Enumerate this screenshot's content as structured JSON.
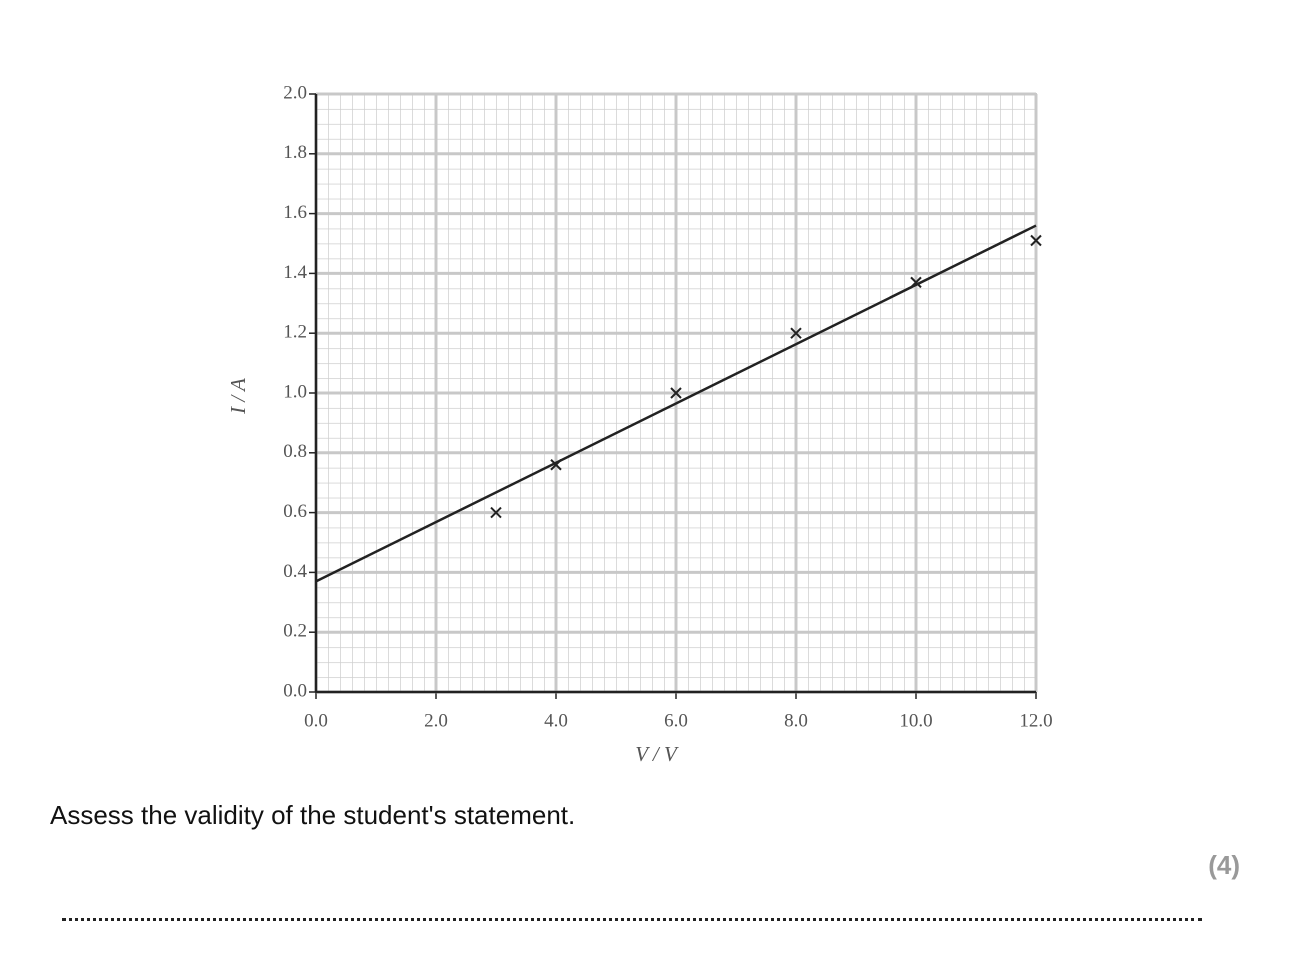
{
  "chart_data": {
    "type": "scatter",
    "xlabel": "V / V",
    "ylabel": "I / A",
    "x": [
      3,
      4,
      6,
      8,
      10,
      12
    ],
    "values": [
      0.6,
      0.76,
      1.0,
      1.2,
      1.37,
      1.51
    ],
    "fit_line": {
      "x": [
        0,
        12
      ],
      "values": [
        0.37,
        1.56
      ]
    },
    "xlim": [
      0,
      12
    ],
    "xticks": [
      {
        "value": 0,
        "label": "0.0"
      },
      {
        "value": 2,
        "label": "2.0"
      },
      {
        "value": 4,
        "label": "4.0"
      },
      {
        "value": 6,
        "label": "6.0"
      },
      {
        "value": 8,
        "label": "8.0"
      },
      {
        "value": 10,
        "label": "10.0"
      },
      {
        "value": 12,
        "label": "12.0"
      }
    ],
    "ylim": [
      0,
      2
    ],
    "yticks": [
      {
        "value": 0,
        "label": "0.0"
      },
      {
        "value": 0.2,
        "label": "0.2"
      },
      {
        "value": 0.4,
        "label": "0.4"
      },
      {
        "value": 0.6,
        "label": "0.6"
      },
      {
        "value": 0.8,
        "label": "0.8"
      },
      {
        "value": 1,
        "label": "1.0"
      },
      {
        "value": 1.2,
        "label": "1.2"
      },
      {
        "value": 1.4,
        "label": "1.4"
      },
      {
        "value": 1.6,
        "label": "1.6"
      },
      {
        "value": 1.8,
        "label": "1.8"
      },
      {
        "value": 2,
        "label": "2.0"
      }
    ],
    "grid": true,
    "color": "#222222"
  },
  "question": {
    "text": "Assess the validity of the student's statement.",
    "marks": "(4)"
  }
}
